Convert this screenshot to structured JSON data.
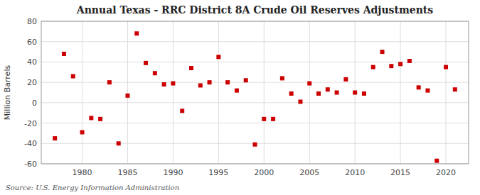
{
  "chart_data": {
    "type": "scatter",
    "title": "Annual Texas - RRC District 8A Crude Oil Reserves Adjustments",
    "ylabel": "Million Barrels",
    "source": "Source: U.S. Energy Information Administration",
    "color": "#cc0000",
    "marker": "square",
    "grid": true,
    "x": [
      1977,
      1978,
      1979,
      1980,
      1981,
      1982,
      1983,
      1984,
      1985,
      1986,
      1987,
      1988,
      1989,
      1990,
      1991,
      1992,
      1993,
      1994,
      1995,
      1996,
      1997,
      1998,
      1999,
      2000,
      2001,
      2002,
      2003,
      2004,
      2005,
      2006,
      2007,
      2008,
      2009,
      2010,
      2011,
      2012,
      2013,
      2014,
      2015,
      2016,
      2017,
      2018,
      2019,
      2020,
      2021
    ],
    "values": [
      -35,
      48,
      26,
      -29,
      -15,
      -16,
      20,
      -40,
      7,
      68,
      39,
      29,
      18,
      19,
      -8,
      34,
      17,
      20,
      45,
      20,
      12,
      22,
      -41,
      -16,
      -16,
      24,
      9,
      1,
      19,
      9,
      13,
      10,
      23,
      10,
      9,
      35,
      50,
      36,
      38,
      41,
      15,
      12,
      -57,
      35,
      13
    ],
    "xlim": [
      1975.5,
      2022.5
    ],
    "ylim": [
      -60,
      80
    ],
    "xticks": [
      1980,
      1985,
      1990,
      1995,
      2000,
      2005,
      2010,
      2015,
      2020
    ],
    "yticks": [
      -60,
      -40,
      -20,
      0,
      20,
      40,
      60,
      80
    ]
  }
}
